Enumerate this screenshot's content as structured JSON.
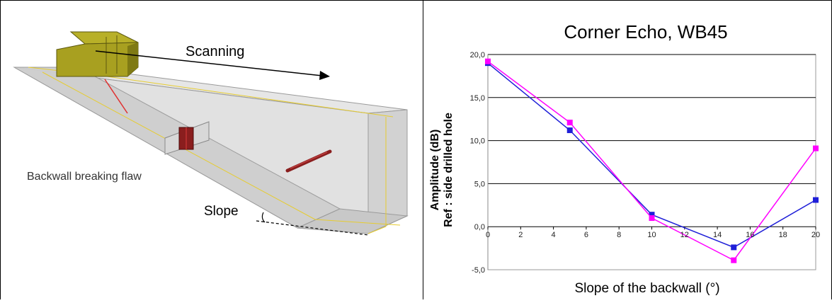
{
  "illustration": {
    "scanning_label": "Scanning",
    "flaw_label": "Backwall breaking flaw",
    "slope_label": "Slope"
  },
  "chart_data": {
    "type": "line",
    "title": "Corner Echo, WB45",
    "xlabel": "Slope of the backwall (°)",
    "ylabel_line1": "Amplitude (dB)",
    "ylabel_line2": "Ref : side drilled hole",
    "xlim": [
      0,
      20
    ],
    "ylim": [
      -5,
      20
    ],
    "x_ticks": [
      "0",
      "2",
      "4",
      "6",
      "8",
      "10",
      "12",
      "14",
      "16",
      "18",
      "20"
    ],
    "y_ticks": [
      "-5,0",
      "0,0",
      "5,0",
      "10,0",
      "15,0",
      "20,0"
    ],
    "grid": true,
    "series": [
      {
        "color": "#1f1fd8",
        "marker": "square",
        "x": [
          0,
          5,
          10,
          15,
          20
        ],
        "y": [
          19.0,
          11.2,
          1.4,
          -2.4,
          3.1
        ]
      },
      {
        "color": "#ff00ff",
        "marker": "square",
        "x": [
          0,
          5,
          10,
          15,
          20
        ],
        "y": [
          19.2,
          12.1,
          1.0,
          -3.9,
          9.1
        ]
      }
    ]
  }
}
